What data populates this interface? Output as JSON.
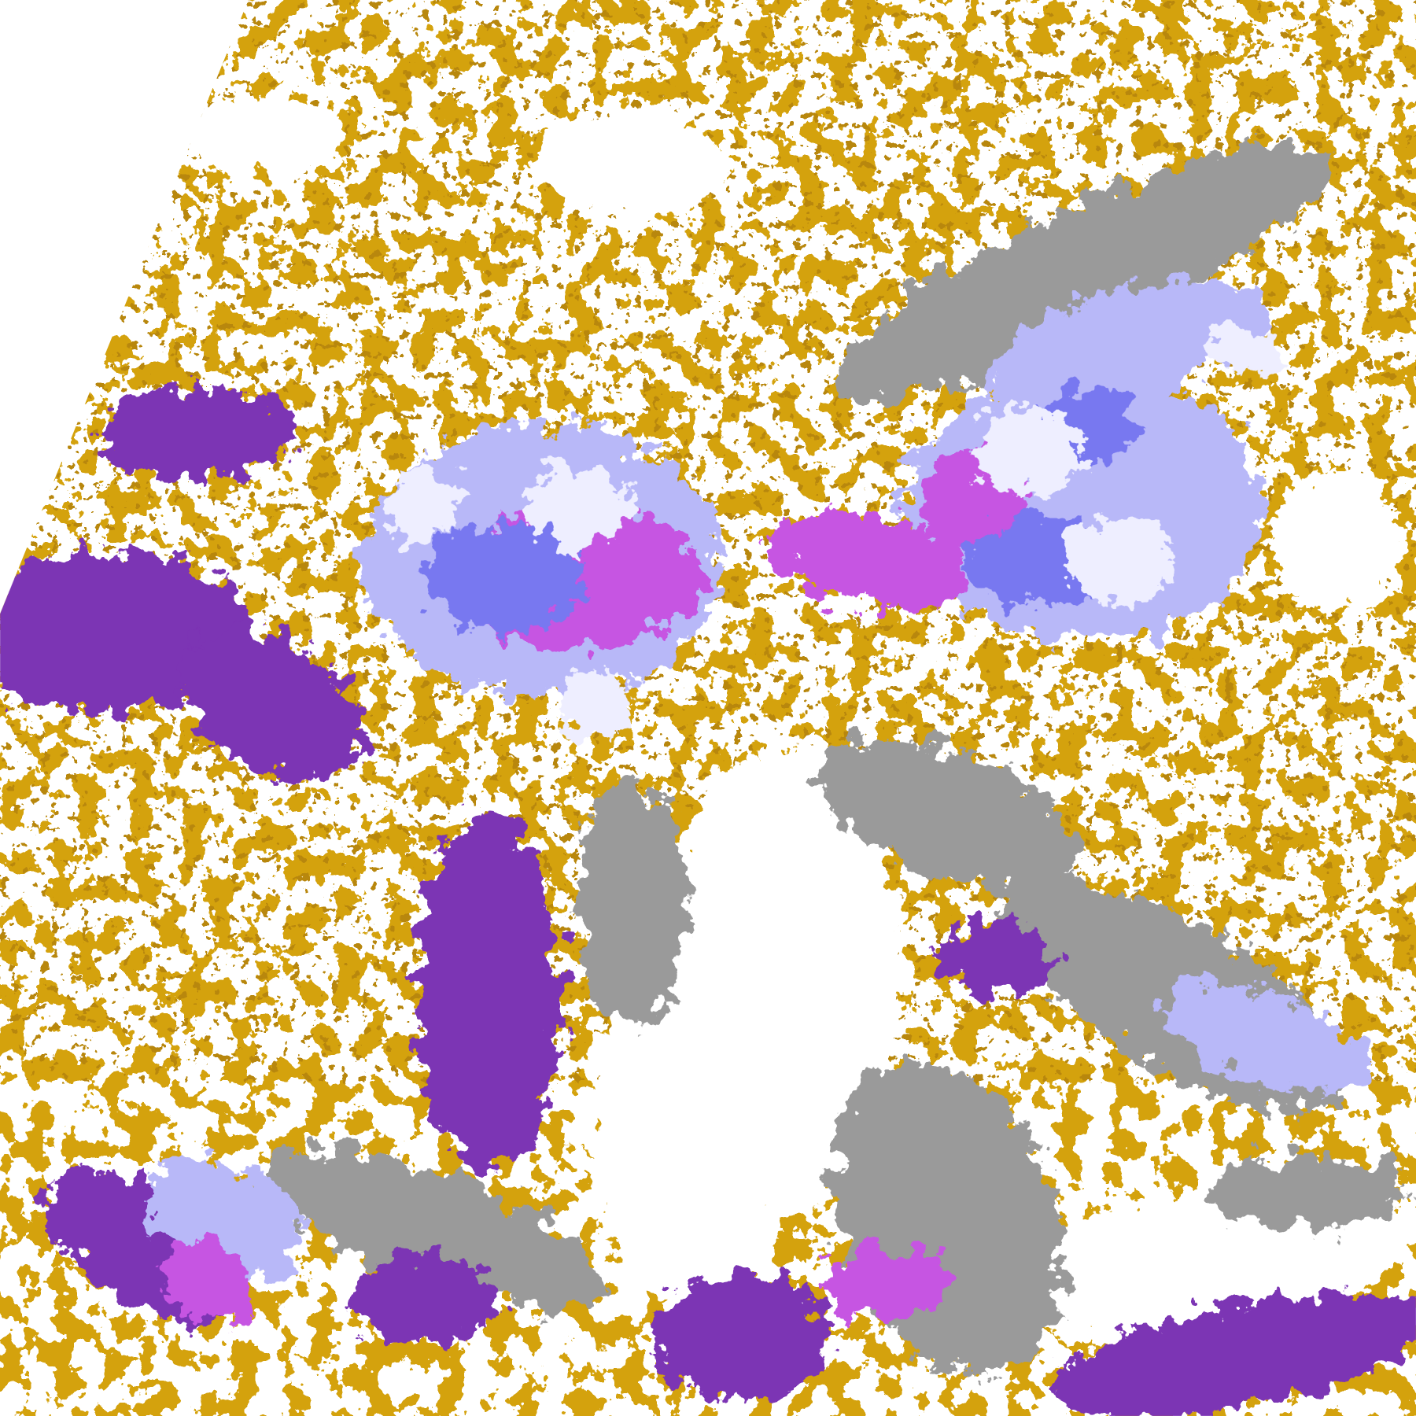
{
  "map": {
    "kind": "satellite cloud classification imagery",
    "palette": {
      "background": "#ffffff",
      "gold": "#d4a20a",
      "dark_gold": "#b8870e",
      "purple": "#7c34b4",
      "magenta": "#c655e2",
      "periwinkle": "#7878f0",
      "lavender": "#b8b8f8",
      "pale_lavender": "#eeeeff",
      "gray": "#9a9a9a",
      "light_gray": "#c4c4c4"
    }
  }
}
